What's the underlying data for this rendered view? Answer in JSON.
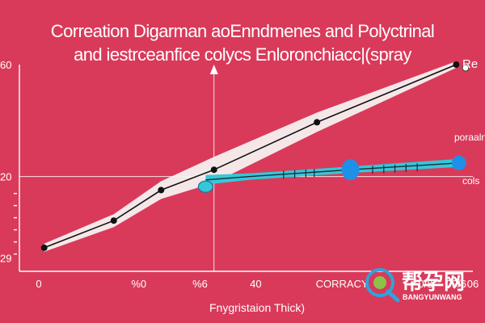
{
  "chart_data": {
    "type": "line",
    "title_lines": [
      "Correation Digarman aoEnndmenes and Polyctrinal",
      "and iestrceanfice colycs Enloronchiacc|(spray"
    ],
    "xlabel": "Fnygristaion Thick)",
    "x_ticks": [
      "0",
      "%0",
      "%6",
      "40",
      "CORRACY",
      "0/8",
      "00/6",
      "06"
    ],
    "y_ticks": [
      "60",
      "20",
      "29"
    ],
    "series": [
      {
        "name": "",
        "style": "band",
        "points": [
          [
            0.6,
            26
          ],
          [
            3.1,
            34
          ],
          [
            4.8,
            43
          ],
          [
            6.7,
            49
          ],
          [
            10.4,
            63
          ],
          [
            15.4,
            80
          ]
        ]
      },
      {
        "name": "",
        "style": "cyan-band",
        "points": [
          [
            6.4,
            46
          ],
          [
            8.0,
            47
          ],
          [
            11.6,
            49
          ],
          [
            15.5,
            51
          ]
        ]
      }
    ],
    "legend": [
      "Re",
      "poraaln",
      "cols"
    ],
    "annotations": {
      "x_ref": "6.7",
      "y_ref": "47"
    },
    "ylim": [
      20,
      80
    ],
    "xlim": [
      0,
      16
    ],
    "colors": {
      "background": "#d93a5a",
      "band": "#f7f0f0",
      "line": "#111111",
      "cyan": "#35c8d8",
      "blue": "#1e90e8",
      "axes": "#ffffff"
    }
  },
  "watermark": {
    "cn": "帮孕网",
    "en": "BANGYUNWANG",
    "icon": "magnifier-logo"
  }
}
